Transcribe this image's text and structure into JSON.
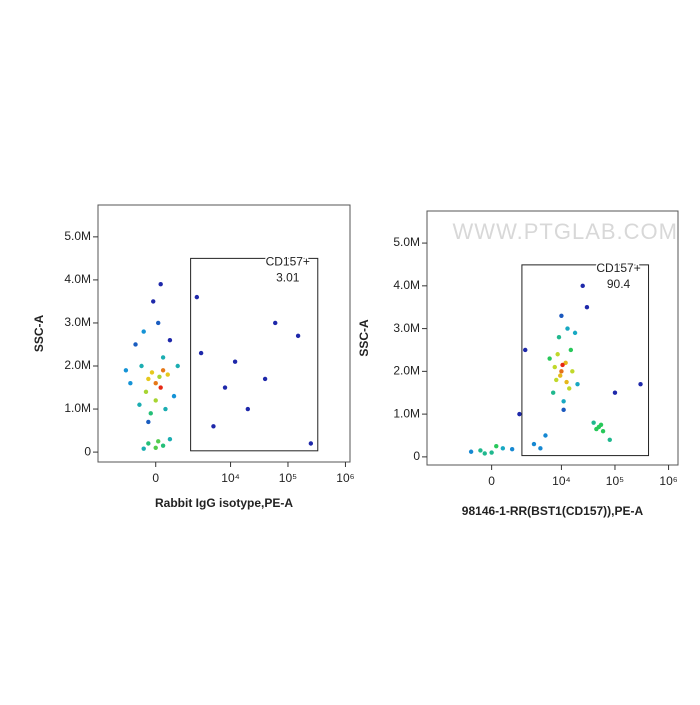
{
  "chart_data": [
    {
      "type": "scatter",
      "x_label": "Rabbit IgG isotype,PE-A",
      "y_label": "SSC-A",
      "xscale": "biexponential",
      "xlim": [
        -5000,
        1200000
      ],
      "ylim": [
        -230000,
        5740000
      ],
      "xticks": [
        0,
        {
          "value": 10000,
          "label": "10⁴"
        },
        {
          "value": 100000,
          "label": "10⁵"
        },
        {
          "value": 1000000,
          "label": "10⁶"
        }
      ],
      "yticks": [
        0,
        {
          "value": 1000000,
          "label": "1.0M"
        },
        {
          "value": 2000000,
          "label": "2.0M"
        },
        {
          "value": 3000000,
          "label": "3.0M"
        },
        {
          "value": 4000000,
          "label": "4.0M"
        },
        {
          "value": 5000000,
          "label": "5.0M"
        }
      ],
      "x": [
        -300,
        200,
        -600,
        500,
        0,
        -900,
        300,
        -200,
        800,
        -1200,
        100,
        -500,
        600,
        -100,
        400,
        -700,
        1000,
        -1500,
        200,
        -300,
        0,
        -400,
        300,
        150,
        -150,
        0,
        -300,
        300,
        600,
        -500,
        100,
        3000,
        8000,
        20000,
        60000,
        150000,
        5000,
        250000,
        12000,
        2500,
        40000
      ],
      "y": [
        1700000,
        1500000,
        2000000,
        1800000,
        1200000,
        2500000,
        2200000,
        900000,
        1300000,
        1600000,
        3000000,
        2800000,
        2600000,
        3500000,
        1000000,
        1100000,
        2000000,
        1900000,
        3900000,
        700000,
        1600000,
        1400000,
        1900000,
        1750000,
        1850000,
        100000,
        200000,
        150000,
        300000,
        80000,
        250000,
        2300000,
        1500000,
        1000000,
        3000000,
        2700000,
        600000,
        200000,
        2100000,
        3600000,
        1700000
      ],
      "gate": {
        "name": "CD157+",
        "percent": 3.01,
        "x": [
          1900,
          330000
        ],
        "y": [
          30000,
          4500000
        ]
      }
    },
    {
      "type": "scatter",
      "x_label": "98146-1-RR(BST1(CD157)),PE-A",
      "y_label": "SSC-A",
      "xscale": "biexponential",
      "watermark": "WWW.PTGLAB.COM",
      "xlim": [
        -8000,
        1500000
      ],
      "ylim": [
        -190000,
        5750000
      ],
      "xticks": [
        0,
        {
          "value": 10000,
          "label": "10⁴"
        },
        {
          "value": 100000,
          "label": "10⁵"
        },
        {
          "value": 1000000,
          "label": "10⁶"
        }
      ],
      "yticks": [
        0,
        {
          "value": 1000000,
          "label": "1.0M"
        },
        {
          "value": 2000000,
          "label": "2.0M"
        },
        {
          "value": 3000000,
          "label": "3.0M"
        },
        {
          "value": 4000000,
          "label": "4.0M"
        },
        {
          "value": 5000000,
          "label": "5.0M"
        }
      ],
      "x": [
        -500,
        0,
        500,
        -1000,
        1000,
        200,
        -300,
        10000,
        8000,
        12000,
        15000,
        7000,
        9000,
        20000,
        11000,
        6000,
        13000,
        10000,
        16000,
        9500,
        14000,
        8500,
        11000,
        18000,
        7500,
        12500,
        10500,
        50000,
        40000,
        60000,
        45000,
        55000,
        3000,
        2000,
        5000,
        25000,
        100000,
        300000,
        1500,
        30000,
        80000,
        4000
      ],
      "y": [
        150000,
        100000,
        200000,
        120000,
        180000,
        250000,
        80000,
        2000000,
        1800000,
        2200000,
        2500000,
        1500000,
        2800000,
        1700000,
        1300000,
        2300000,
        3000000,
        3300000,
        2000000,
        1900000,
        1600000,
        2400000,
        1100000,
        2900000,
        2100000,
        1750000,
        2150000,
        700000,
        800000,
        600000,
        650000,
        750000,
        300000,
        2500000,
        500000,
        4000000,
        1500000,
        1700000,
        1000000,
        3500000,
        400000,
        200000
      ],
      "gate": {
        "name": "CD157+",
        "percent": 90.4,
        "x": [
          1700,
          423000
        ],
        "y": [
          30000,
          4490000
        ]
      }
    }
  ]
}
